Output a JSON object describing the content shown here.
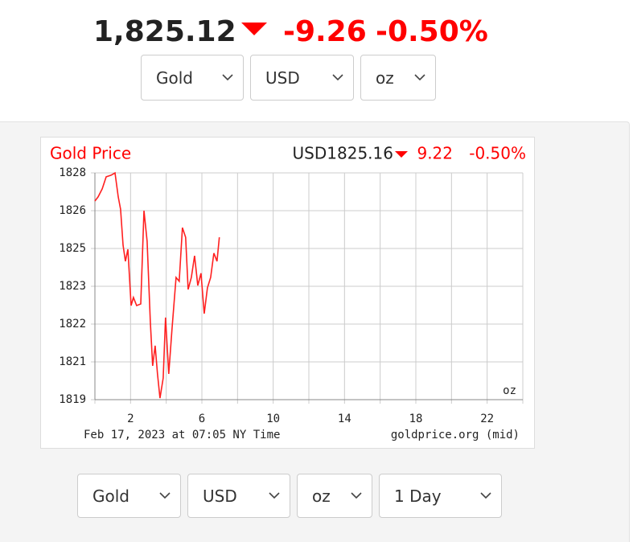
{
  "header": {
    "price": "1,825.12",
    "change": "-9.26",
    "change_pct": "-0.50%"
  },
  "top_selects": [
    "Gold",
    "USD",
    "oz"
  ],
  "chart_data": {
    "type": "line",
    "title": "Gold Price",
    "price_label": "USD1825.16",
    "change": "9.22",
    "change_pct": "-0.50%",
    "unit": "oz",
    "footer_left": "Feb 17, 2023 at 07:05 NY Time",
    "footer_right": "goldprice.org (mid)",
    "color": "#ff2020",
    "grid": true,
    "x": [
      0,
      0.18,
      0.41,
      0.63,
      0.9,
      1.13,
      1.31,
      1.44,
      1.58,
      1.71,
      1.85,
      2.03,
      2.16,
      2.34,
      2.57,
      2.75,
      2.93,
      3.11,
      3.24,
      3.38,
      3.51,
      3.65,
      3.83,
      3.96,
      4.14,
      4.32,
      4.55,
      4.73,
      4.91,
      5.09,
      5.23,
      5.41,
      5.59,
      5.77,
      5.95,
      6.13,
      6.31,
      6.49,
      6.67,
      6.85,
      6.98
    ],
    "values": [
      1826.72,
      1826.88,
      1827.19,
      1827.65,
      1827.71,
      1827.8,
      1826.88,
      1826.41,
      1825.03,
      1824.41,
      1824.87,
      1822.71,
      1823.02,
      1822.71,
      1822.77,
      1826.35,
      1825.18,
      1822.09,
      1820.4,
      1821.17,
      1820.09,
      1819.16,
      1819.93,
      1822.25,
      1820.09,
      1821.79,
      1823.79,
      1823.64,
      1825.7,
      1825.33,
      1823.33,
      1823.79,
      1824.62,
      1823.48,
      1823.95,
      1822.4,
      1823.39,
      1823.79,
      1824.72,
      1824.41,
      1825.33
    ],
    "xlim": [
      0,
      24
    ],
    "xticks": [
      2,
      6,
      10,
      14,
      18,
      22
    ],
    "minor_xticks": [
      0,
      4,
      8,
      12,
      16,
      20,
      24
    ],
    "ylim": [
      1819.1,
      1827.8
    ],
    "yticks": [
      {
        "value": 1819.1,
        "label": "1819"
      },
      {
        "value": 1820.55,
        "label": "1821"
      },
      {
        "value": 1822.0,
        "label": "1822"
      },
      {
        "value": 1823.45,
        "label": "1823"
      },
      {
        "value": 1824.9,
        "label": "1825"
      },
      {
        "value": 1826.35,
        "label": "1826"
      },
      {
        "value": 1827.8,
        "label": "1828"
      }
    ]
  },
  "bottom_selects": [
    "Gold",
    "USD",
    "oz",
    "1 Day"
  ]
}
